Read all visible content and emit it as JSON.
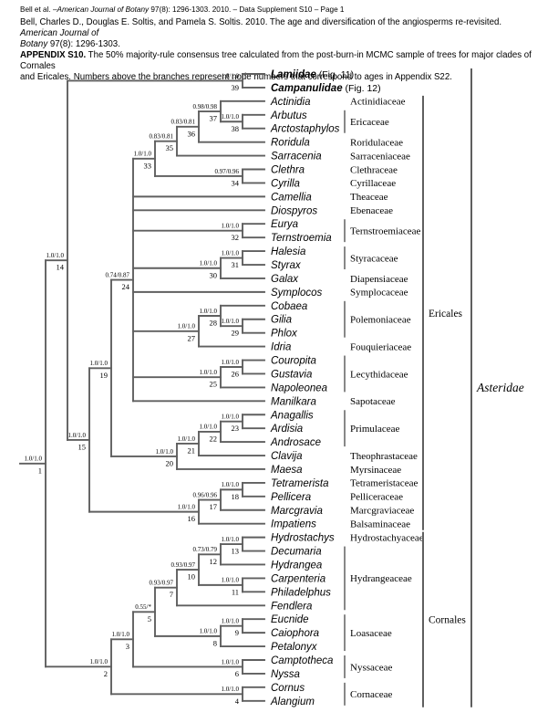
{
  "page": {
    "header_line1": [
      {
        "t": "Bell et al. –",
        "i": false
      },
      {
        "t": "American Journal of Botany",
        "i": true
      },
      {
        "t": " 97(8): 1296-1303. 2010. – Data Supplement S10 – Page 1",
        "i": false
      }
    ],
    "citation": [
      {
        "t": "Bell, Charles D., Douglas E. Soltis, and Pamela S. Soltis. 2010. The age and diversification of the angiosperms re-revisited. "
      },
      {
        "t": "American Journal of",
        "i": true
      },
      {
        "br": true
      },
      {
        "t": "Botany",
        "i": true
      },
      {
        "t": " 97(8): 1296-1303."
      }
    ],
    "appendix": [
      {
        "t": "APPENDIX S10.",
        "b": true
      },
      {
        "t": " The 50% majority-rule consensus tree calculated from the post-burn-in MCMC sample of trees for major clades of Cornales"
      },
      {
        "br": true
      },
      {
        "t": "and Ericales. Numbers above the branches represent node numbers that correspond to ages in Appendix S22."
      }
    ]
  },
  "tree": {
    "n": 1,
    "s": "1.0/1.0",
    "c": [
      {
        "n": 14,
        "s": "1.0/1.0",
        "c": [
          {
            "n": 39,
            "s": "1.0/1.0",
            "c": [
              {
                "t": "Lamiidae",
                "suffix": " (Fig. 11)",
                "bold": true
              },
              {
                "t": "Campanulidae",
                "suffix": " (Fig. 12)",
                "bold": true
              }
            ]
          },
          {
            "n": 15,
            "s": "1.0/1.0",
            "c": [
              {
                "n": 19,
                "s": "1.0/1.0",
                "c": [
                  {
                    "n": 24,
                    "s": "0.74/0.87",
                    "c": [
                      {
                        "n": 33,
                        "s": "1.0/1.0",
                        "c": [
                          {
                            "n": 35,
                            "s": "0.83/0.81",
                            "c": [
                              {
                                "n": 36,
                                "s": "0.83/0.81",
                                "c": [
                                  {
                                    "n": 37,
                                    "s": "0.98/0.98",
                                    "c": [
                                      {
                                        "t": "Actinidia"
                                      },
                                      {
                                        "n": 38,
                                        "s": "1.0/1.0",
                                        "c": [
                                          {
                                            "t": "Arbutus"
                                          },
                                          {
                                            "t": "Arctostaphylos"
                                          }
                                        ]
                                      }
                                    ]
                                  },
                                  {
                                    "t": "Roridula"
                                  }
                                ]
                              },
                              {
                                "t": "Sarracenia"
                              }
                            ]
                          },
                          {
                            "n": 34,
                            "s": "0.97/0.96",
                            "c": [
                              {
                                "t": "Clethra"
                              },
                              {
                                "t": "Cyrilla"
                              }
                            ]
                          }
                        ]
                      },
                      {
                        "t": "Camellia"
                      },
                      {
                        "t": "Diospyros"
                      },
                      {
                        "n": 32,
                        "s": "1.0/1.0",
                        "c": [
                          {
                            "t": "Eurya"
                          },
                          {
                            "t": "Ternstroemia"
                          }
                        ]
                      },
                      {
                        "n": 30,
                        "s": "1.0/1.0",
                        "c": [
                          {
                            "n": 31,
                            "s": "1.0/1.0",
                            "c": [
                              {
                                "t": "Halesia"
                              },
                              {
                                "t": "Styrax"
                              }
                            ]
                          },
                          {
                            "t": "Galax"
                          }
                        ]
                      },
                      {
                        "t": "Symplocos"
                      },
                      {
                        "n": 27,
                        "s": "1.0/1.0",
                        "c": [
                          {
                            "n": 28,
                            "s": "1.0/1.0",
                            "c": [
                              {
                                "t": "Cobaea"
                              },
                              {
                                "n": 29,
                                "s": "1.0/1.0",
                                "c": [
                                  {
                                    "t": "Gilia"
                                  },
                                  {
                                    "t": "Phlox"
                                  }
                                ]
                              }
                            ]
                          },
                          {
                            "t": "Idria"
                          }
                        ]
                      },
                      {
                        "n": 25,
                        "s": "1.0/1.0",
                        "c": [
                          {
                            "n": 26,
                            "s": "1.0/1.0",
                            "c": [
                              {
                                "t": "Couropita"
                              },
                              {
                                "t": "Gustavia"
                              }
                            ]
                          },
                          {
                            "t": "Napoleonea"
                          }
                        ]
                      },
                      {
                        "t": "Manilkara"
                      }
                    ]
                  },
                  {
                    "n": 20,
                    "s": "1.0/1.0",
                    "c": [
                      {
                        "n": 21,
                        "s": "1.0/1.0",
                        "c": [
                          {
                            "n": 22,
                            "s": "1.0/1.0",
                            "c": [
                              {
                                "n": 23,
                                "s": "1.0/1.0",
                                "c": [
                                  {
                                    "t": "Anagallis"
                                  },
                                  {
                                    "t": "Ardisia"
                                  }
                                ]
                              },
                              {
                                "t": "Androsace"
                              }
                            ]
                          },
                          {
                            "t": "Clavija"
                          }
                        ]
                      },
                      {
                        "t": "Maesa"
                      }
                    ]
                  }
                ]
              },
              {
                "n": 16,
                "s": "1.0/1.0",
                "c": [
                  {
                    "n": 17,
                    "s": "0.96/0.96",
                    "c": [
                      {
                        "n": 18,
                        "s": "1.0/1.0",
                        "c": [
                          {
                            "t": "Tetramerista"
                          },
                          {
                            "t": "Pellicera"
                          }
                        ]
                      },
                      {
                        "t": "Marcgravia"
                      }
                    ]
                  },
                  {
                    "t": "Impatiens"
                  }
                ]
              }
            ]
          }
        ]
      },
      {
        "n": 2,
        "s": "1.0/1.0",
        "c": [
          {
            "n": 3,
            "s": "1.0/1.0",
            "c": [
              {
                "n": 5,
                "s": "0.55/*",
                "c": [
                  {
                    "n": 7,
                    "s": "0.93/0.97",
                    "c": [
                      {
                        "n": 10,
                        "s": "0.93/0.97",
                        "c": [
                          {
                            "n": 12,
                            "s": "0.73/0.79",
                            "c": [
                              {
                                "n": 13,
                                "s": "1.0/1.0",
                                "c": [
                                  {
                                    "t": "Hydrostachys"
                                  },
                                  {
                                    "t": "Decumaria"
                                  }
                                ]
                              },
                              {
                                "t": "Hydrangea"
                              }
                            ]
                          },
                          {
                            "n": 11,
                            "s": "1.0/1.0",
                            "c": [
                              {
                                "t": "Carpenteria"
                              },
                              {
                                "t": "Philadelphus"
                              }
                            ]
                          }
                        ]
                      },
                      {
                        "t": "Fendlera"
                      }
                    ]
                  },
                  {
                    "n": 8,
                    "s": "1.0/1.0",
                    "c": [
                      {
                        "n": 9,
                        "s": "1.0/1.0",
                        "c": [
                          {
                            "t": "Eucnide"
                          },
                          {
                            "t": "Caiophora"
                          }
                        ]
                      },
                      {
                        "t": "Petalonyx"
                      }
                    ]
                  }
                ]
              },
              {
                "n": 6,
                "s": "1.0/1.0",
                "c": [
                  {
                    "t": "Camptotheca"
                  },
                  {
                    "t": "Nyssa"
                  }
                ]
              }
            ]
          },
          {
            "n": 4,
            "s": "1.0/1.0",
            "c": [
              {
                "t": "Cornus"
              },
              {
                "t": "Alangium"
              }
            ]
          }
        ]
      }
    ]
  },
  "families": [
    {
      "name": "Actinidiaceae",
      "start": 2,
      "end": 2
    },
    {
      "name": "Ericaceae",
      "start": 3,
      "end": 4
    },
    {
      "name": "Roridulaceae",
      "start": 5,
      "end": 5
    },
    {
      "name": "Sarraceniaceae",
      "start": 6,
      "end": 6
    },
    {
      "name": "Clethraceae",
      "start": 7,
      "end": 7
    },
    {
      "name": "Cyrillaceae",
      "start": 8,
      "end": 8
    },
    {
      "name": "Theaceae",
      "start": 9,
      "end": 9
    },
    {
      "name": "Ebenaceae",
      "start": 10,
      "end": 10
    },
    {
      "name": "Ternstroemiaceae",
      "start": 11,
      "end": 12
    },
    {
      "name": "Styracaceae",
      "start": 13,
      "end": 14
    },
    {
      "name": "Diapensiaceae",
      "start": 15,
      "end": 15
    },
    {
      "name": "Symplocaceae",
      "start": 16,
      "end": 16
    },
    {
      "name": "Polemoniaceae",
      "start": 17,
      "end": 19
    },
    {
      "name": "Fouquieriaceae",
      "start": 20,
      "end": 20
    },
    {
      "name": "Lecythidaceae",
      "start": 21,
      "end": 23
    },
    {
      "name": "Sapotaceae",
      "start": 24,
      "end": 24
    },
    {
      "name": "Primulaceae",
      "start": 25,
      "end": 27
    },
    {
      "name": "Theophrastaceae",
      "start": 28,
      "end": 28
    },
    {
      "name": "Myrsinaceae",
      "start": 29,
      "end": 29
    },
    {
      "name": "Tetrameristaceae",
      "start": 30,
      "end": 30
    },
    {
      "name": "Pelliceraceae",
      "start": 31,
      "end": 31
    },
    {
      "name": "Marcgraviaceae",
      "start": 32,
      "end": 32
    },
    {
      "name": "Balsaminaceae",
      "start": 33,
      "end": 33
    },
    {
      "name": "Hydrostachyaceae",
      "start": 34,
      "end": 34
    },
    {
      "name": "Hydrangeaceae",
      "start": 35,
      "end": 39
    },
    {
      "name": "Loasaceae",
      "start": 40,
      "end": 42
    },
    {
      "name": "Nyssaceae",
      "start": 43,
      "end": 44
    },
    {
      "name": "Cornaceae",
      "start": 45,
      "end": 46
    }
  ],
  "orders": [
    {
      "name": "Ericales",
      "start": 2,
      "end": 33
    },
    {
      "name": "Cornales",
      "start": 34,
      "end": 46
    }
  ],
  "superclade": {
    "name": "Asteridae",
    "start": 0,
    "end": 46
  }
}
